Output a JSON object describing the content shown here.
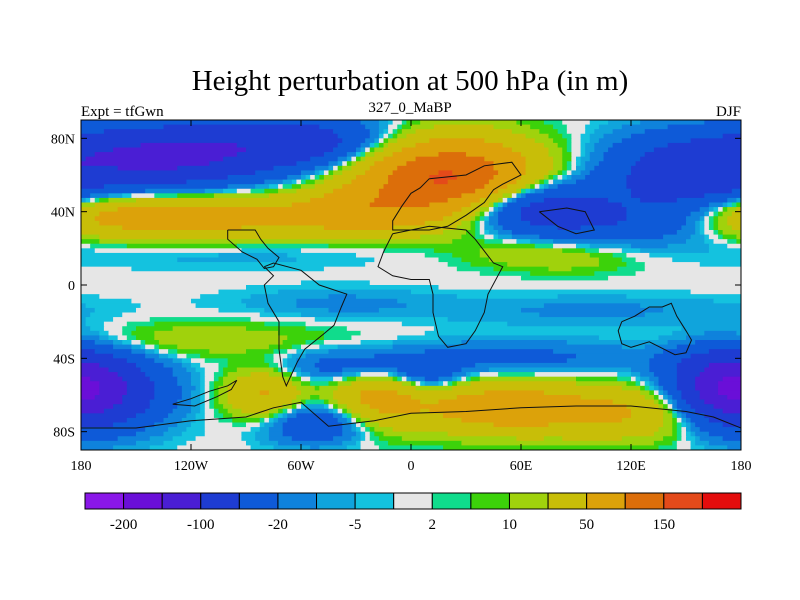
{
  "chart_data": {
    "type": "heatmap",
    "title": "Height perturbation at 500 hPa (in m)",
    "subtitle_left": "Expt = tfGwn",
    "subtitle_center": "327_0_MaBP",
    "subtitle_right": "DJF",
    "x_range": [
      -180,
      180
    ],
    "y_range": [
      -90,
      90
    ],
    "x_ticks": [
      {
        "value": -180,
        "label": "180"
      },
      {
        "value": -120,
        "label": "120W"
      },
      {
        "value": -60,
        "label": "60W"
      },
      {
        "value": 0,
        "label": "0"
      },
      {
        "value": 60,
        "label": "60E"
      },
      {
        "value": 120,
        "label": "120E"
      },
      {
        "value": 180,
        "label": "180"
      }
    ],
    "y_ticks": [
      {
        "value": 80,
        "label": "80N"
      },
      {
        "value": 40,
        "label": "40N"
      },
      {
        "value": 0,
        "label": "0"
      },
      {
        "value": -40,
        "label": "40S"
      },
      {
        "value": -80,
        "label": "80S"
      }
    ],
    "colorbar": {
      "colors": [
        "#8a17e8",
        "#6a0fd8",
        "#4a1ed4",
        "#1e3cd2",
        "#0e5ad8",
        "#0f82dc",
        "#10a4dc",
        "#14c2df",
        "#e6e6e6",
        "#10dc8c",
        "#3cd20a",
        "#a0d20c",
        "#c8be08",
        "#dca20a",
        "#dc6e0a",
        "#e44a1a",
        "#e40c0c"
      ],
      "ticks": [
        {
          "index": 1,
          "label": "-200"
        },
        {
          "index": 3,
          "label": "-100"
        },
        {
          "index": 5,
          "label": "-20"
        },
        {
          "index": 7,
          "label": "-5"
        },
        {
          "index": 9,
          "label": "2"
        },
        {
          "index": 11,
          "label": "10"
        },
        {
          "index": 13,
          "label": "50"
        },
        {
          "index": 15,
          "label": "150"
        }
      ]
    },
    "features": [
      {
        "lon": -135,
        "lat": 70,
        "amp": -110,
        "sx": 40,
        "sy": 12
      },
      {
        "lon": -60,
        "lat": 78,
        "amp": -70,
        "sx": 35,
        "sy": 10
      },
      {
        "lon": -110,
        "lat": 37,
        "amp": 65,
        "sx": 45,
        "sy": 9
      },
      {
        "lon": -170,
        "lat": 38,
        "amp": 40,
        "sx": 25,
        "sy": 8
      },
      {
        "lon": -30,
        "lat": 40,
        "amp": 55,
        "sx": 25,
        "sy": 9
      },
      {
        "lon": 20,
        "lat": 58,
        "amp": 160,
        "sx": 33,
        "sy": 15
      },
      {
        "lon": 65,
        "lat": 43,
        "amp": -85,
        "sx": 28,
        "sy": 10
      },
      {
        "lon": 150,
        "lat": 60,
        "amp": -75,
        "sx": 32,
        "sy": 15
      },
      {
        "lon": 112,
        "lat": 33,
        "amp": -30,
        "sx": 35,
        "sy": 8
      },
      {
        "lon": 60,
        "lat": 18,
        "amp": 14,
        "sx": 25,
        "sy": 6
      },
      {
        "lon": 90,
        "lat": 14,
        "amp": 12,
        "sx": 25,
        "sy": 6
      },
      {
        "lon": -100,
        "lat": 18,
        "amp": -10,
        "sx": 70,
        "sy": 6
      },
      {
        "lon": -40,
        "lat": -10,
        "amp": -12,
        "sx": 40,
        "sy": 6
      },
      {
        "lon": 100,
        "lat": -14,
        "amp": -12,
        "sx": 60,
        "sy": 6
      },
      {
        "lon": -120,
        "lat": -30,
        "amp": 18,
        "sx": 55,
        "sy": 7
      },
      {
        "lon": -30,
        "lat": -45,
        "amp": -35,
        "sx": 30,
        "sy": 7
      },
      {
        "lon": 60,
        "lat": -40,
        "amp": -25,
        "sx": 55,
        "sy": 7
      },
      {
        "lon": -170,
        "lat": -58,
        "amp": -95,
        "sx": 25,
        "sy": 14
      },
      {
        "lon": 170,
        "lat": -55,
        "amp": -95,
        "sx": 20,
        "sy": 14
      },
      {
        "lon": -80,
        "lat": -60,
        "amp": 55,
        "sx": 15,
        "sy": 10
      },
      {
        "lon": -20,
        "lat": -62,
        "amp": 60,
        "sx": 18,
        "sy": 12
      },
      {
        "lon": 50,
        "lat": -67,
        "amp": 75,
        "sx": 35,
        "sy": 10
      },
      {
        "lon": 120,
        "lat": -70,
        "amp": 45,
        "sx": 30,
        "sy": 10
      },
      {
        "lon": -50,
        "lat": -75,
        "amp": -50,
        "sx": 22,
        "sy": 8
      },
      {
        "lon": 10,
        "lat": -50,
        "amp": -30,
        "sx": 12,
        "sy": 6
      }
    ],
    "continent_outlines": [
      [
        [
          10,
          58
        ],
        [
          30,
          60
        ],
        [
          40,
          65
        ],
        [
          55,
          67
        ],
        [
          60,
          60
        ],
        [
          50,
          55
        ],
        [
          45,
          52
        ],
        [
          40,
          45
        ],
        [
          30,
          38
        ],
        [
          20,
          32
        ],
        [
          10,
          30
        ],
        [
          -10,
          30
        ],
        [
          -10,
          35
        ],
        [
          -5,
          43
        ],
        [
          0,
          50
        ],
        [
          5,
          53
        ],
        [
          10,
          58
        ]
      ],
      [
        [
          -10,
          28
        ],
        [
          -15,
          18
        ],
        [
          -18,
          10
        ],
        [
          -10,
          5
        ],
        [
          0,
          3
        ],
        [
          10,
          3
        ],
        [
          12,
          -5
        ],
        [
          12,
          -15
        ],
        [
          15,
          -28
        ],
        [
          20,
          -34
        ],
        [
          30,
          -32
        ],
        [
          35,
          -25
        ],
        [
          40,
          -15
        ],
        [
          42,
          -5
        ],
        [
          50,
          10
        ],
        [
          45,
          12
        ],
        [
          35,
          25
        ],
        [
          30,
          30
        ],
        [
          10,
          32
        ],
        [
          -10,
          28
        ]
      ],
      [
        [
          -80,
          10
        ],
        [
          -75,
          5
        ],
        [
          -80,
          0
        ],
        [
          -78,
          -10
        ],
        [
          -72,
          -20
        ],
        [
          -72,
          -35
        ],
        [
          -70,
          -50
        ],
        [
          -68,
          -55
        ],
        [
          -62,
          -42
        ],
        [
          -58,
          -35
        ],
        [
          -48,
          -27
        ],
        [
          -42,
          -22
        ],
        [
          -38,
          -12
        ],
        [
          -35,
          -5
        ],
        [
          -50,
          0
        ],
        [
          -60,
          8
        ],
        [
          -75,
          12
        ],
        [
          -80,
          10
        ]
      ],
      [
        [
          -100,
          30
        ],
        [
          -100,
          25
        ],
        [
          -92,
          18
        ],
        [
          -84,
          14
        ],
        [
          -80,
          9
        ],
        [
          -75,
          10
        ],
        [
          -72,
          15
        ],
        [
          -78,
          20
        ],
        [
          -82,
          25
        ],
        [
          -85,
          30
        ],
        [
          -100,
          30
        ]
      ],
      [
        [
          115,
          -20
        ],
        [
          122,
          -17
        ],
        [
          130,
          -12
        ],
        [
          137,
          -12
        ],
        [
          142,
          -10
        ],
        [
          145,
          -17
        ],
        [
          150,
          -25
        ],
        [
          153,
          -30
        ],
        [
          150,
          -37
        ],
        [
          144,
          -38
        ],
        [
          138,
          -35
        ],
        [
          130,
          -31
        ],
        [
          120,
          -34
        ],
        [
          115,
          -32
        ],
        [
          113,
          -25
        ],
        [
          115,
          -20
        ]
      ],
      [
        [
          -180,
          -78
        ],
        [
          -150,
          -78
        ],
        [
          -120,
          -74
        ],
        [
          -90,
          -72
        ],
        [
          -75,
          -67
        ],
        [
          -60,
          -64
        ],
        [
          -45,
          -77
        ],
        [
          -20,
          -74
        ],
        [
          0,
          -70
        ],
        [
          30,
          -69
        ],
        [
          60,
          -67
        ],
        [
          90,
          -66
        ],
        [
          120,
          -66
        ],
        [
          150,
          -69
        ],
        [
          165,
          -72
        ],
        [
          180,
          -78
        ]
      ],
      [
        [
          -130,
          -65
        ],
        [
          -120,
          -62
        ],
        [
          -110,
          -58
        ],
        [
          -100,
          -55
        ],
        [
          -95,
          -52
        ],
        [
          -98,
          -57
        ],
        [
          -106,
          -61
        ],
        [
          -118,
          -66
        ],
        [
          -130,
          -65
        ]
      ],
      [
        [
          70,
          40
        ],
        [
          85,
          42
        ],
        [
          95,
          40
        ],
        [
          100,
          30
        ],
        [
          90,
          28
        ],
        [
          80,
          32
        ],
        [
          70,
          40
        ]
      ]
    ]
  }
}
